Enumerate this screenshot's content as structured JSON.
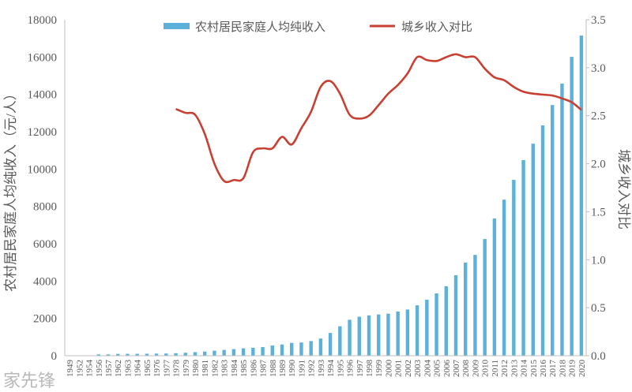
{
  "chart_data": {
    "type": "bar+line",
    "categories": [
      "1949",
      "1952",
      "1954",
      "1956",
      "1957",
      "1962",
      "1963",
      "1964",
      "1965",
      "1976",
      "1977",
      "1978",
      "1979",
      "1980",
      "1981",
      "1982",
      "1983",
      "1984",
      "1985",
      "1986",
      "1987",
      "1988",
      "1989",
      "1990",
      "1991",
      "1992",
      "1993",
      "1994",
      "1995",
      "1996",
      "1997",
      "1998",
      "1999",
      "2000",
      "2001",
      "2002",
      "2003",
      "2004",
      "2005",
      "2006",
      "2007",
      "2008",
      "2009",
      "2010",
      "2011",
      "2012",
      "2013",
      "2014",
      "2015",
      "2016",
      "2017",
      "2018",
      "2019",
      "2020"
    ],
    "series": [
      {
        "name": "农村居民家庭人均纯收入",
        "type": "bar",
        "axis": "left",
        "color": "#5bb1d9",
        "values": [
          null,
          null,
          null,
          73,
          73,
          99,
          101,
          102,
          107,
          113,
          117,
          134,
          160,
          191,
          223,
          270,
          310,
          355,
          398,
          424,
          463,
          545,
          602,
          686,
          709,
          784,
          922,
          1221,
          1578,
          1926,
          2090,
          2162,
          2210,
          2253,
          2366,
          2476,
          2700,
          3000,
          3340,
          3720,
          4310,
          4990,
          5400,
          6250,
          7350,
          8360,
          9420,
          10480,
          11360,
          12340,
          13430,
          14580,
          16010,
          17150
        ]
      },
      {
        "name": "城乡收入对比",
        "type": "line",
        "axis": "right",
        "color": "#c84032",
        "values": [
          null,
          null,
          null,
          null,
          null,
          null,
          null,
          null,
          null,
          null,
          null,
          2.57,
          2.53,
          2.51,
          2.31,
          2.0,
          1.82,
          1.83,
          1.85,
          2.12,
          2.16,
          2.16,
          2.28,
          2.2,
          2.37,
          2.54,
          2.8,
          2.86,
          2.73,
          2.51,
          2.47,
          2.5,
          2.61,
          2.73,
          2.82,
          2.94,
          3.11,
          3.08,
          3.07,
          3.11,
          3.14,
          3.11,
          3.11,
          2.99,
          2.9,
          2.87,
          2.8,
          2.75,
          2.73,
          2.72,
          2.71,
          2.68,
          2.64,
          2.56
        ]
      }
    ],
    "ylabel": "农村居民家庭人均纯收入（元/人）",
    "y2label": "城乡收入对比",
    "ylim": [
      0,
      18000
    ],
    "yticks": [
      "0",
      "2000",
      "4000",
      "6000",
      "8000",
      "10000",
      "12000",
      "14000",
      "16000",
      "18000"
    ],
    "y2lim": [
      0,
      3.5
    ],
    "y2ticks": [
      "0.0",
      "0.5",
      "1.0",
      "1.5",
      "2.0",
      "2.5",
      "3.0",
      "3.5"
    ],
    "grid": false,
    "legend": "top"
  },
  "watermark": "家先锋"
}
